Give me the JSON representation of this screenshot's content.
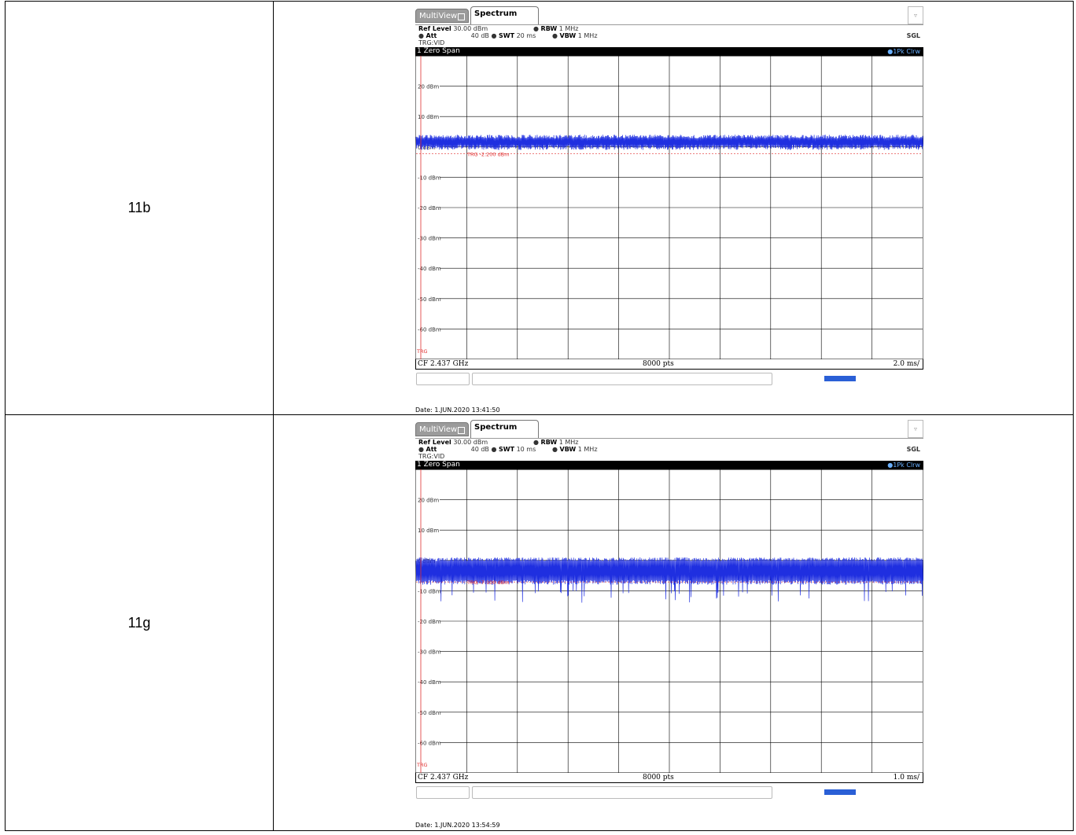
{
  "rows": [
    {
      "mode": "11b",
      "tabs": {
        "multiview": "MultiView",
        "spectrum": "Spectrum"
      },
      "settings": {
        "ref_level_label": "Ref Level",
        "ref_level_value": "30.00 dBm",
        "att_label": "Att",
        "att_value": "40 dB",
        "swt_label": "SWT",
        "swt_value": "20 ms",
        "rbw_label": "RBW",
        "rbw_value": "1 MHz",
        "vbw_label": "VBW",
        "vbw_value": "1 MHz",
        "trigger": "TRG:VID",
        "sweep": "SGL"
      },
      "window_title": "1 Zero Span",
      "trace_label": "1Pk Clrw",
      "trg_marker_label": "TRG -2.200 dBm",
      "trg_edge_label": "TRG",
      "footer": {
        "center": "CF 2.437 GHz",
        "points": "8000 pts",
        "per_div": "2.0 ms/"
      },
      "date": "Date: 1.JUN.2020 13:41:50",
      "chart_data": {
        "type": "line",
        "ylabel": "",
        "yticks": [
          "20 dBm",
          "10 dBm",
          "0 dBm",
          "-10 dBm",
          "-20 dBm",
          "-30 dBm",
          "-40 dBm",
          "-50 dBm",
          "-60 dBm"
        ],
        "ylim": [
          -70,
          30
        ],
        "x_divisions": 10,
        "trigger_level_dbm": -2.2,
        "signal_upper_dbm": 4.0,
        "signal_lower_dbm": -1.0,
        "grid": true,
        "trace_color": "#1f2fe0",
        "trigger_color": "#e03030"
      }
    },
    {
      "mode": "11g",
      "tabs": {
        "multiview": "MultiView",
        "spectrum": "Spectrum"
      },
      "settings": {
        "ref_level_label": "Ref Level",
        "ref_level_value": "30.00 dBm",
        "att_label": "Att",
        "att_value": "40 dB",
        "swt_label": "SWT",
        "swt_value": "10 ms",
        "rbw_label": "RBW",
        "rbw_value": "1 MHz",
        "vbw_label": "VBW",
        "vbw_value": "1 MHz",
        "trigger": "TRG:VID",
        "sweep": "SGL"
      },
      "window_title": "1 Zero Span",
      "trace_label": "1Pk Clrw",
      "trg_marker_label": "TRG -7.100 dBm",
      "trg_edge_label": "TRG",
      "footer": {
        "center": "CF 2.437 GHz",
        "points": "8000 pts",
        "per_div": "1.0 ms/"
      },
      "date": "Date: 1.JUN.2020 13:54:59",
      "chart_data": {
        "type": "line",
        "ylabel": "",
        "yticks": [
          "20 dBm",
          "10 dBm",
          "0 dBm",
          "-10 dBm",
          "-20 dBm",
          "-30 dBm",
          "-40 dBm",
          "-50 dBm",
          "-60 dBm"
        ],
        "ylim": [
          -70,
          30
        ],
        "x_divisions": 10,
        "trigger_level_dbm": -7.1,
        "signal_upper_dbm": 1.0,
        "signal_lower_dbm": -8.0,
        "grid": true,
        "trace_color": "#1f2fe0",
        "trigger_color": "#e03030"
      }
    }
  ]
}
